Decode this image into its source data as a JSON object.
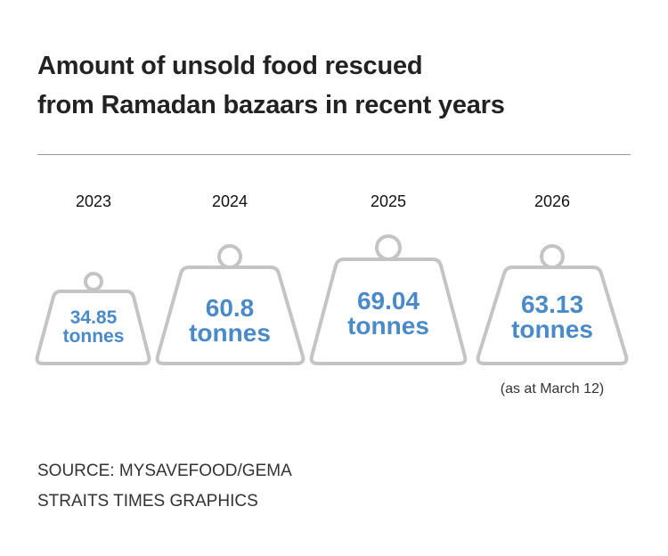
{
  "title": [
    "Amount of unsold food rescued",
    "from Ramadan bazaars in recent years"
  ],
  "chart_data": {
    "type": "pictogram",
    "title": "Amount of unsold food rescued from Ramadan bazaars in recent years",
    "unit": "tonnes",
    "categories": [
      "2023",
      "2024",
      "2025",
      "2026"
    ],
    "values": [
      34.85,
      60.8,
      69.04,
      63.13
    ],
    "value_labels": [
      "34.85",
      "60.8",
      "69.04",
      "63.13"
    ],
    "annotations": [
      {
        "category": "2026",
        "text": "(as at March 12)"
      }
    ]
  },
  "colors": {
    "value": "#4a8ac9",
    "weight_outline": "#c4c4c4"
  },
  "source": [
    "SOURCE: MYSAVEFOOD/GEMA",
    "STRAITS TIMES GRAPHICS"
  ]
}
